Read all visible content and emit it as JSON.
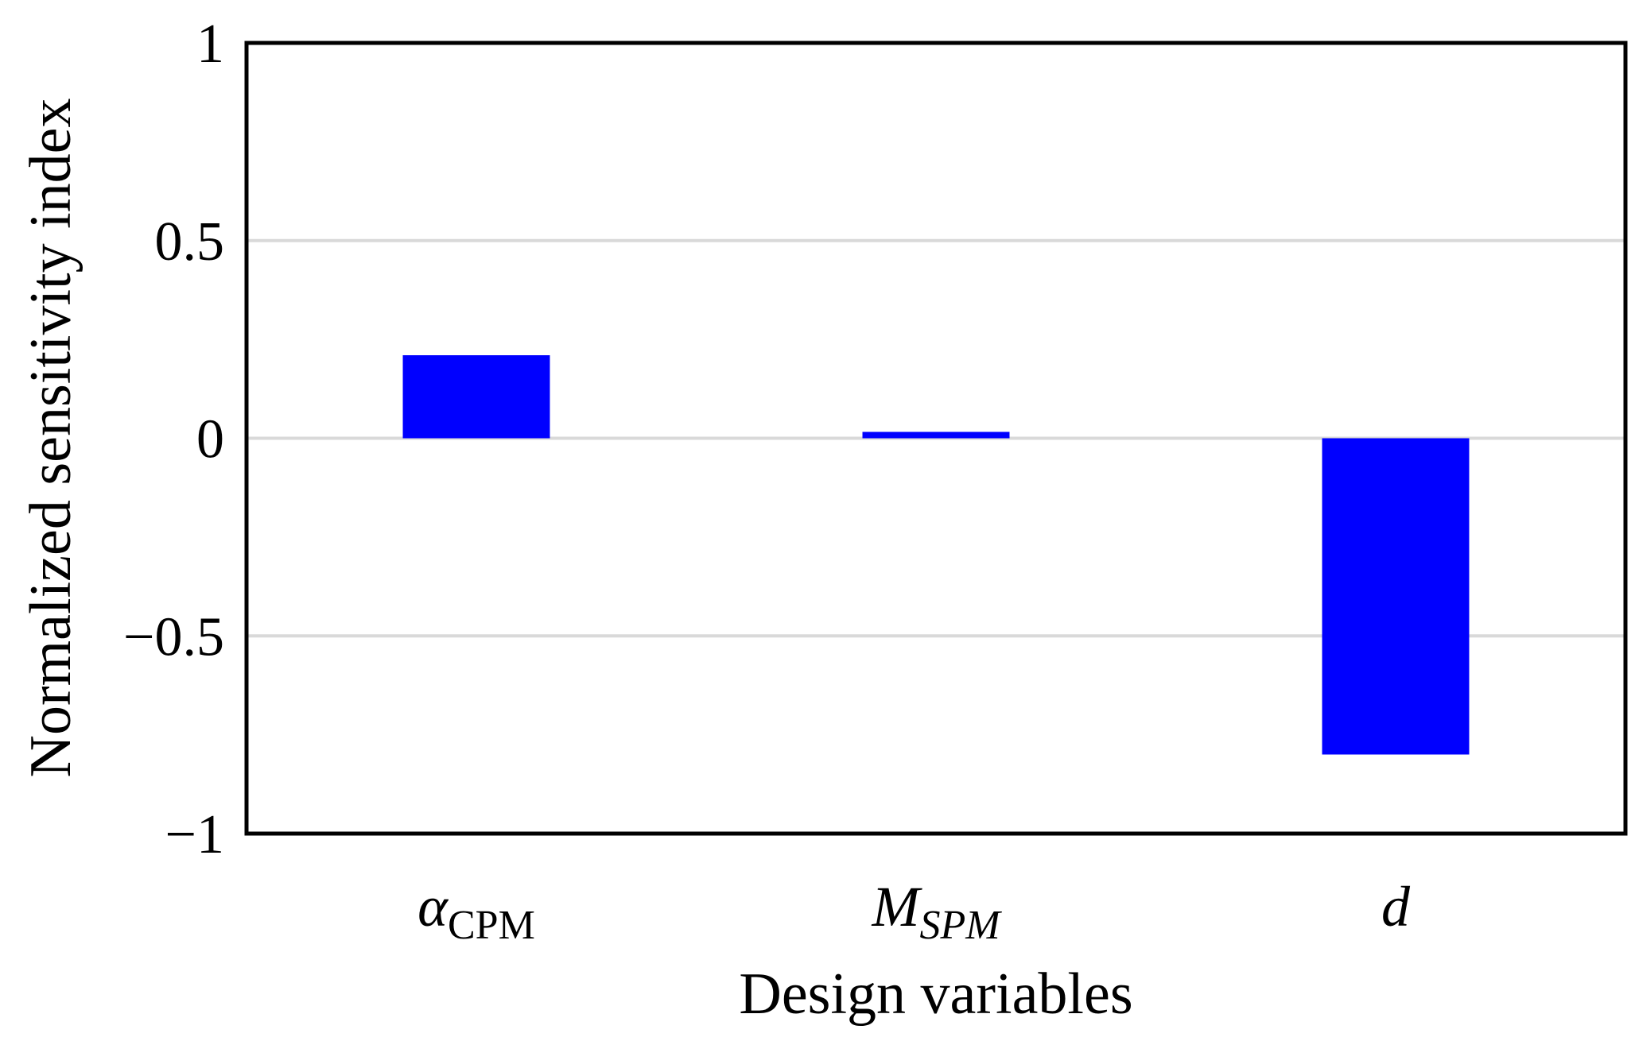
{
  "chart_data": {
    "type": "bar",
    "categories": [
      {
        "base": "α",
        "sub": "CPM",
        "base_italic": true,
        "sub_italic": false
      },
      {
        "base": "M",
        "sub": "SPM",
        "base_italic": true,
        "sub_italic": true
      },
      {
        "base": "d",
        "sub": "",
        "base_italic": true,
        "sub_italic": false
      }
    ],
    "values": [
      0.21,
      0.015,
      -0.8
    ],
    "ylim": [
      -1,
      1
    ],
    "yticks": [
      1,
      0.5,
      0,
      -0.5,
      -1
    ],
    "ytick_labels": [
      "1",
      "0.5",
      "0",
      "−0.5",
      "−1"
    ],
    "xlabel": "Design variables",
    "ylabel": "Normalized sensitivity index",
    "grid": true,
    "bar_color": "#0000ff",
    "grid_color": "#d9d9d9"
  }
}
